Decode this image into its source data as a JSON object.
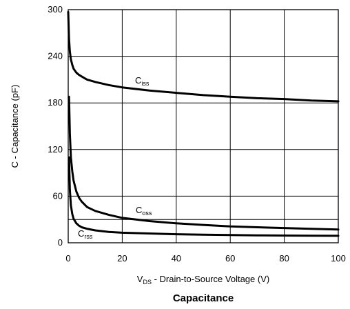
{
  "chart_data": {
    "type": "line",
    "title": "Capacitance",
    "xlabel": {
      "main": "V",
      "sub": "DS",
      "rest": " - Drain-to-Source Voltage (V)"
    },
    "ylabel": "C - Capacitance (pF)",
    "xlim": [
      0,
      100
    ],
    "ylim": [
      0,
      300
    ],
    "xticks": [
      0,
      20,
      40,
      60,
      80,
      100
    ],
    "xtick_labels": [
      "0",
      "20",
      "40",
      "60",
      "80",
      "100"
    ],
    "yticks": [
      0,
      60,
      120,
      180,
      240,
      300
    ],
    "ytick_labels": [
      "0",
      "60",
      "120",
      "180",
      "240",
      "300"
    ],
    "ygrid": [
      0,
      30,
      60,
      120,
      180,
      240,
      300
    ],
    "grid": true,
    "series": [
      {
        "name": "Ciss",
        "main": "C",
        "sub": "iss",
        "x": [
          0,
          0.3,
          0.6,
          1,
          1.5,
          2,
          3,
          4,
          5,
          7,
          10,
          15,
          20,
          30,
          40,
          50,
          60,
          70,
          80,
          90,
          100
        ],
        "y": [
          297,
          262,
          246,
          236,
          229,
          224,
          219,
          216,
          214,
          210,
          207,
          203,
          200,
          196,
          193,
          190,
          188,
          186,
          185,
          183,
          182
        ]
      },
      {
        "name": "Coss",
        "main": "C",
        "sub": "oss",
        "x": [
          0.3,
          0.6,
          1,
          1.5,
          2,
          3,
          4,
          5,
          7,
          10,
          15,
          20,
          30,
          40,
          50,
          60,
          70,
          80,
          90,
          100
        ],
        "y": [
          188,
          140,
          110,
          92,
          80,
          66,
          58,
          53,
          46,
          41,
          36,
          32,
          28,
          25,
          23,
          21,
          20,
          19,
          18,
          17
        ]
      },
      {
        "name": "Crss",
        "main": "C",
        "sub": "rss",
        "x": [
          0.3,
          0.6,
          1,
          1.5,
          2,
          3,
          4,
          5,
          7,
          10,
          15,
          20,
          30,
          40,
          50,
          60,
          70,
          80,
          90,
          100
        ],
        "y": [
          110,
          68,
          48,
          37,
          31,
          25,
          22,
          20,
          18,
          16,
          14,
          13,
          12,
          11,
          10.5,
          10,
          9.6,
          9.3,
          9.1,
          9
        ]
      }
    ]
  }
}
